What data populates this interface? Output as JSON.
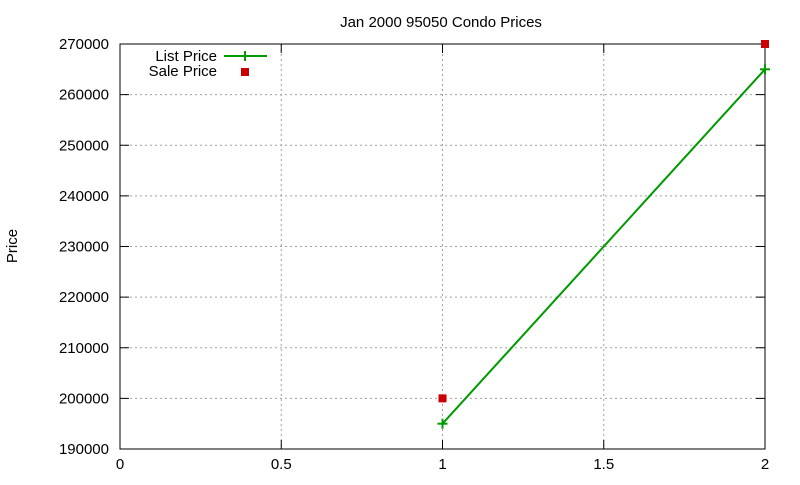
{
  "chart_data": {
    "type": "line",
    "title": "Jan 2000 95050 Condo Prices",
    "xlabel": "",
    "ylabel": "Price",
    "xlim": [
      0,
      2
    ],
    "ylim": [
      190000,
      270000
    ],
    "x_ticks": [
      0,
      0.5,
      1,
      1.5,
      2
    ],
    "x_tick_labels": [
      "0",
      "0.5",
      "1",
      "1.5",
      "2"
    ],
    "y_ticks": [
      190000,
      200000,
      210000,
      220000,
      230000,
      240000,
      250000,
      260000,
      270000
    ],
    "y_tick_labels": [
      "190000",
      "200000",
      "210000",
      "220000",
      "230000",
      "240000",
      "250000",
      "260000",
      "270000"
    ],
    "grid": true,
    "legend_position": "top-left",
    "series": [
      {
        "name": "List Price",
        "style": "linespoints",
        "marker": "plus",
        "color": "#009900",
        "x": [
          1,
          2
        ],
        "y": [
          195000,
          265000
        ]
      },
      {
        "name": "Sale Price",
        "style": "points",
        "marker": "square",
        "color": "#cc0000",
        "x": [
          1,
          2
        ],
        "y": [
          200000,
          270000
        ]
      }
    ]
  }
}
